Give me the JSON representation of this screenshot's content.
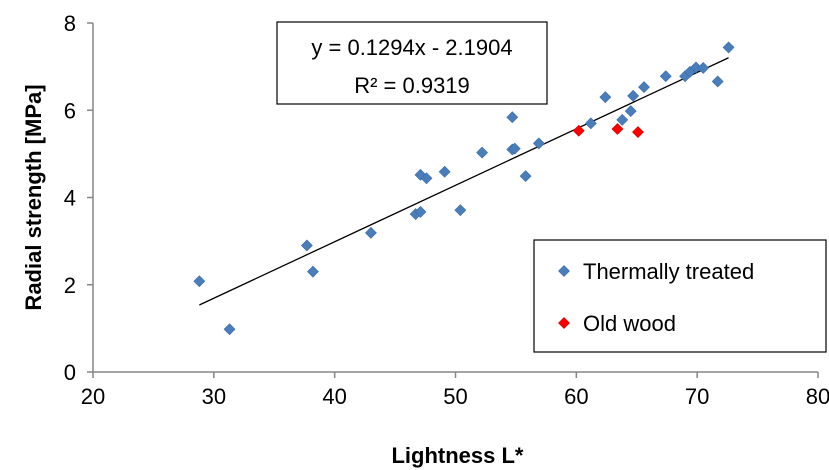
{
  "chart_data": {
    "type": "scatter",
    "xlabel": "Lightness L*",
    "ylabel": "Radial strength [MPa]",
    "xlim": [
      20,
      80
    ],
    "ylim": [
      0,
      8
    ],
    "xticks": [
      20,
      30,
      40,
      50,
      60,
      70,
      80
    ],
    "yticks": [
      0,
      2,
      4,
      6,
      8
    ],
    "x_tick_labels": [
      "20",
      "30",
      "40",
      "50",
      "60",
      "70",
      "80"
    ],
    "y_tick_labels": [
      "0",
      "2",
      "4",
      "6",
      "8"
    ],
    "grid": false,
    "legend_position": "bottom-right",
    "series": [
      {
        "name": "Thermally treated",
        "marker": "diamond",
        "color": "#4a7ebb",
        "points": [
          [
            28.8,
            2.08
          ],
          [
            31.3,
            0.98
          ],
          [
            37.7,
            2.9
          ],
          [
            38.2,
            2.3
          ],
          [
            43.0,
            3.19
          ],
          [
            46.7,
            3.62
          ],
          [
            47.1,
            3.67
          ],
          [
            47.1,
            4.52
          ],
          [
            47.6,
            4.44
          ],
          [
            49.1,
            4.59
          ],
          [
            50.4,
            3.71
          ],
          [
            52.2,
            5.03
          ],
          [
            54.7,
            5.1
          ],
          [
            54.7,
            5.84
          ],
          [
            54.9,
            5.12
          ],
          [
            55.8,
            4.49
          ],
          [
            56.9,
            5.24
          ],
          [
            61.2,
            5.7
          ],
          [
            62.4,
            6.3
          ],
          [
            63.8,
            5.78
          ],
          [
            64.5,
            5.98
          ],
          [
            64.7,
            6.33
          ],
          [
            65.6,
            6.53
          ],
          [
            67.4,
            6.78
          ],
          [
            69.0,
            6.78
          ],
          [
            69.4,
            6.88
          ],
          [
            69.9,
            6.98
          ],
          [
            70.5,
            6.97
          ],
          [
            71.7,
            6.66
          ],
          [
            72.6,
            7.44
          ]
        ]
      },
      {
        "name": "Old wood",
        "marker": "diamond",
        "color": "#ff0000",
        "points": [
          [
            60.2,
            5.53
          ],
          [
            63.4,
            5.57
          ],
          [
            65.1,
            5.5
          ]
        ]
      }
    ],
    "trendline": {
      "slope": 0.1294,
      "intercept": -2.1904,
      "x_range": [
        28.8,
        72.6
      ],
      "equation_label": "y = 0.1294x - 2.1904",
      "r2_label": "R² = 0.9319"
    }
  }
}
